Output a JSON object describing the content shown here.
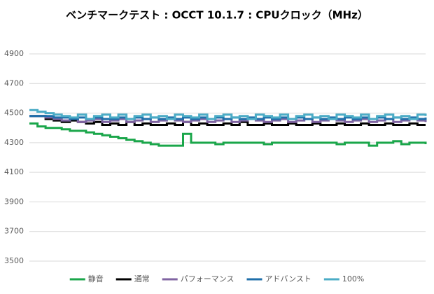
{
  "chart_data": {
    "type": "line",
    "title": "ベンチマークテスト : OCCT 10.1.7 : CPUクロック（MHz）",
    "ylim": [
      3500,
      4900
    ],
    "yticks": [
      3500,
      3700,
      3900,
      4100,
      4300,
      4500,
      4700,
      4900
    ],
    "grid": true,
    "legend": "bottom",
    "series": [
      {
        "name": "静音",
        "color": "#1aa64a",
        "values": [
          4430,
          4410,
          4400,
          4400,
          4390,
          4380,
          4380,
          4370,
          4360,
          4350,
          4340,
          4330,
          4320,
          4310,
          4300,
          4290,
          4280,
          4280,
          4280,
          4360,
          4300,
          4300,
          4300,
          4290,
          4300,
          4300,
          4300,
          4300,
          4300,
          4290,
          4300,
          4300,
          4300,
          4300,
          4300,
          4300,
          4300,
          4300,
          4290,
          4300,
          4300,
          4300,
          4280,
          4300,
          4300,
          4310,
          4290,
          4300,
          4300,
          4290
        ]
      },
      {
        "name": "通常",
        "color": "#000000",
        "values": [
          4480,
          4480,
          4460,
          4450,
          4440,
          4450,
          4440,
          4430,
          4440,
          4420,
          4430,
          4420,
          4440,
          4420,
          4430,
          4420,
          4420,
          4430,
          4420,
          4440,
          4420,
          4430,
          4420,
          4420,
          4430,
          4420,
          4440,
          4420,
          4420,
          4430,
          4420,
          4420,
          4430,
          4420,
          4420,
          4430,
          4420,
          4420,
          4430,
          4420,
          4420,
          4430,
          4420,
          4420,
          4430,
          4420,
          4420,
          4430,
          4420,
          4420
        ]
      },
      {
        "name": "パフォーマンス",
        "color": "#8064a2",
        "values": [
          4480,
          4480,
          4470,
          4460,
          4450,
          4460,
          4440,
          4450,
          4460,
          4440,
          4450,
          4460,
          4440,
          4450,
          4460,
          4440,
          4450,
          4460,
          4450,
          4440,
          4450,
          4460,
          4440,
          4450,
          4460,
          4440,
          4450,
          4460,
          4450,
          4440,
          4450,
          4460,
          4440,
          4450,
          4460,
          4440,
          4450,
          4460,
          4450,
          4440,
          4450,
          4460,
          4440,
          4450,
          4460,
          4440,
          4450,
          4460,
          4450,
          4440
        ]
      },
      {
        "name": "アドバンスト",
        "color": "#1f6faa",
        "values": [
          4480,
          4480,
          4480,
          4470,
          4470,
          4460,
          4470,
          4460,
          4470,
          4460,
          4460,
          4470,
          4460,
          4470,
          4460,
          4470,
          4460,
          4470,
          4460,
          4470,
          4460,
          4470,
          4460,
          4470,
          4460,
          4470,
          4460,
          4470,
          4460,
          4470,
          4460,
          4470,
          4460,
          4470,
          4460,
          4470,
          4460,
          4470,
          4460,
          4470,
          4460,
          4470,
          4460,
          4470,
          4460,
          4470,
          4460,
          4470,
          4460,
          4470
        ]
      },
      {
        "name": "100%",
        "color": "#4bacc6",
        "values": [
          4520,
          4510,
          4500,
          4490,
          4480,
          4470,
          4490,
          4460,
          4480,
          4490,
          4470,
          4490,
          4460,
          4480,
          4490,
          4470,
          4480,
          4460,
          4490,
          4480,
          4470,
          4490,
          4460,
          4480,
          4490,
          4470,
          4480,
          4460,
          4490,
          4480,
          4470,
          4490,
          4460,
          4480,
          4490,
          4470,
          4480,
          4460,
          4490,
          4480,
          4470,
          4490,
          4460,
          4480,
          4490,
          4470,
          4480,
          4460,
          4490,
          4480
        ]
      }
    ]
  }
}
